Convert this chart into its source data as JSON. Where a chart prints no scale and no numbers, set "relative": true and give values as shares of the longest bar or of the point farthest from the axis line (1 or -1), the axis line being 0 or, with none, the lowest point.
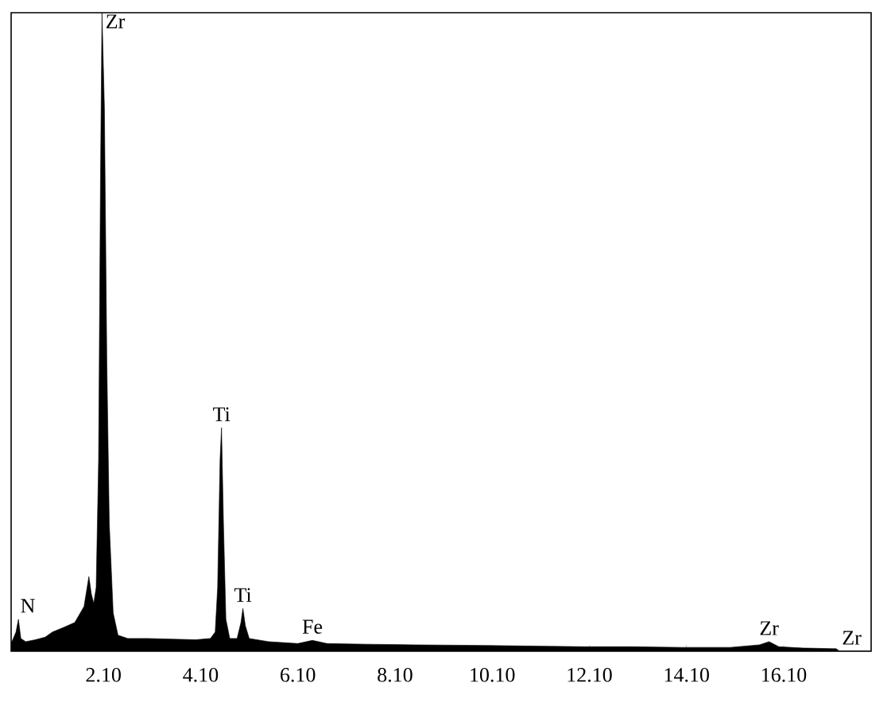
{
  "chart_data": {
    "type": "area",
    "relative": true,
    "grid": false,
    "xlim": [
      0.2,
      17.9
    ],
    "xticks": [
      {
        "value": 2.1,
        "label": "2.10"
      },
      {
        "value": 4.1,
        "label": "4.10"
      },
      {
        "value": 6.1,
        "label": "6.10"
      },
      {
        "value": 8.1,
        "label": "8.10"
      },
      {
        "value": 10.1,
        "label": "10.10"
      },
      {
        "value": 12.1,
        "label": "12.10"
      },
      {
        "value": 14.1,
        "label": "14.10"
      },
      {
        "value": 16.1,
        "label": "16.10"
      }
    ],
    "series": [
      {
        "color": "#000000",
        "x": [
          0.2,
          0.3,
          0.35,
          0.4,
          0.5,
          0.7,
          0.9,
          1.05,
          1.3,
          1.51,
          1.7,
          1.8,
          1.85,
          1.9,
          1.95,
          2.0,
          2.04,
          2.07,
          2.12,
          2.17,
          2.22,
          2.3,
          2.4,
          2.6,
          3.0,
          3.5,
          4.0,
          4.3,
          4.4,
          4.45,
          4.5,
          4.53,
          4.57,
          4.62,
          4.7,
          4.85,
          4.93,
          4.97,
          5.02,
          5.1,
          5.5,
          6.1,
          6.4,
          6.7,
          7.5,
          8.5,
          10.0,
          11.0,
          12.0,
          13.0,
          14.0,
          15.0,
          15.6,
          15.8,
          16.0,
          16.5,
          17.1,
          17.18,
          17.25,
          17.9
        ],
        "values": [
          0.012,
          0.03,
          0.05,
          0.02,
          0.015,
          0.018,
          0.022,
          0.03,
          0.038,
          0.045,
          0.07,
          0.117,
          0.09,
          0.075,
          0.1,
          0.3,
          0.75,
          1.0,
          0.85,
          0.45,
          0.2,
          0.06,
          0.025,
          0.02,
          0.02,
          0.019,
          0.018,
          0.02,
          0.03,
          0.1,
          0.3,
          0.35,
          0.2,
          0.05,
          0.02,
          0.02,
          0.045,
          0.067,
          0.04,
          0.02,
          0.015,
          0.012,
          0.017,
          0.012,
          0.011,
          0.01,
          0.009,
          0.008,
          0.007,
          0.007,
          0.006,
          0.006,
          0.01,
          0.015,
          0.007,
          0.005,
          0.004,
          0.004,
          0,
          0
        ]
      }
    ],
    "annotations": [
      {
        "text": "Zr",
        "x": 2.07,
        "y": 1.0
      },
      {
        "text": "Ti",
        "x": 4.53,
        "y": 0.35
      },
      {
        "text": "Ti",
        "x": 4.97,
        "y": 0.067
      },
      {
        "text": "N",
        "x": 0.35,
        "y": 0.05
      },
      {
        "text": "Fe",
        "x": 6.4,
        "y": 0.017
      },
      {
        "text": "Zr",
        "x": 15.8,
        "y": 0.015
      },
      {
        "text": "Zr",
        "x": 17.5,
        "y": 0.0
      }
    ]
  }
}
